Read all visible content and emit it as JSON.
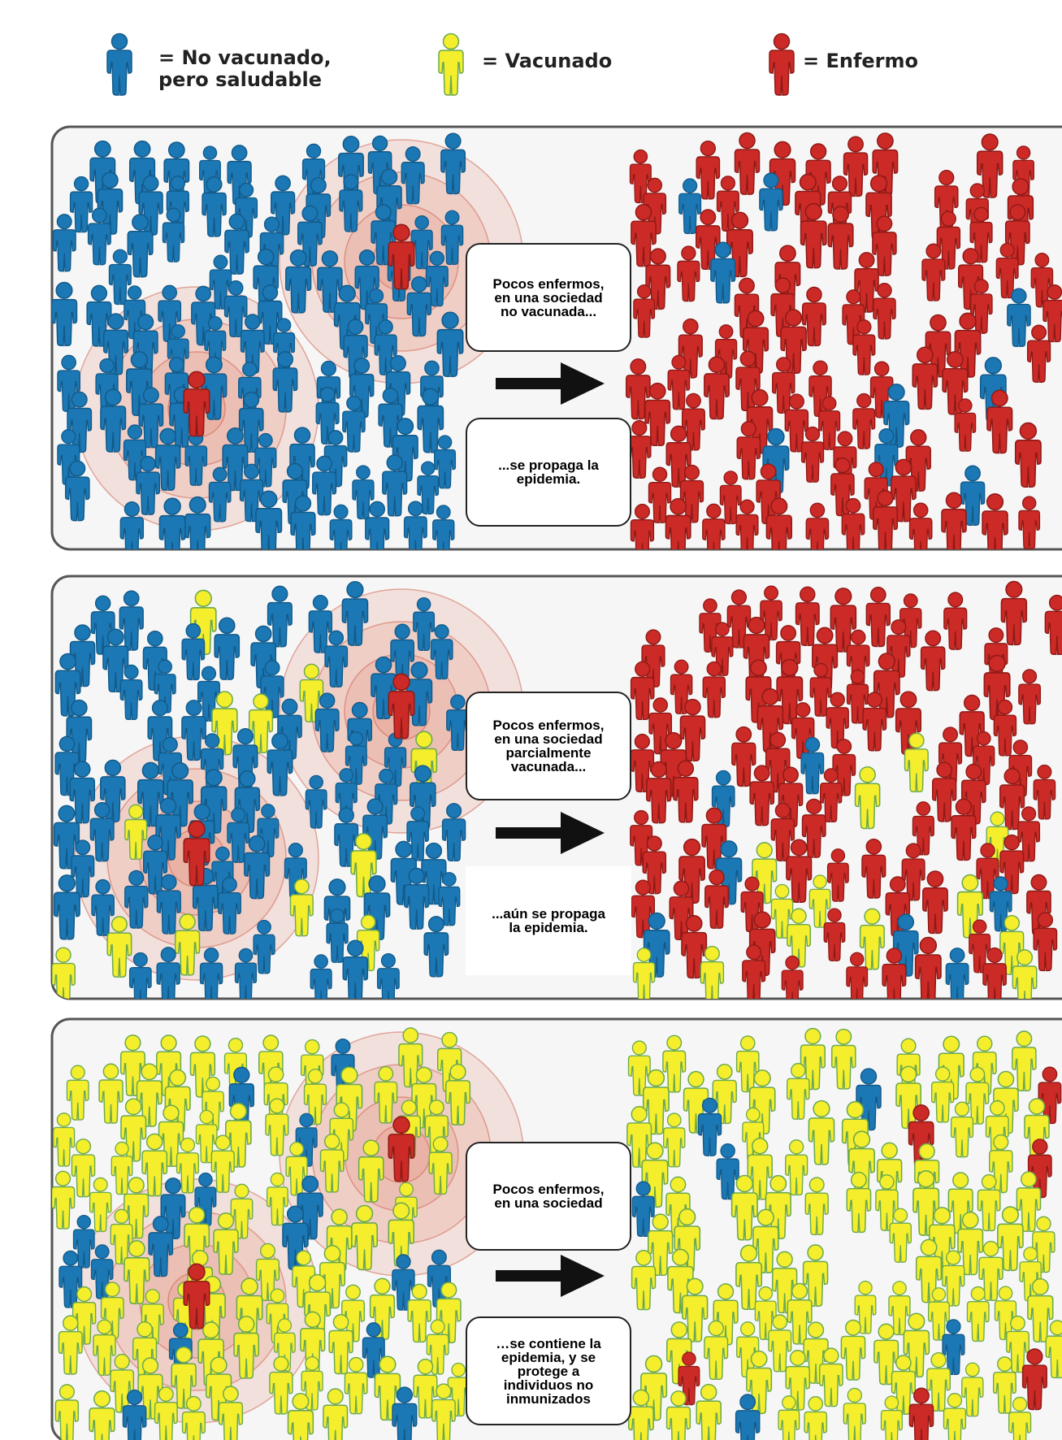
{
  "legend": [
    {
      "label": "= No vacunado, pero saludable"
    },
    {
      "label": "= Vacunado"
    },
    {
      "label": "= Enfermo"
    }
  ],
  "panels": [
    {
      "top_text": "Pocos enfermos, en una sociedad no vacunada...",
      "bottom_text": "...se propaga la epidemia."
    },
    {
      "top_text": "Pocos enfermos, en una sociedad parcialmente vacunada...",
      "bottom_text": "...aún se propaga la epidemia."
    },
    {
      "top_text": "Pocos enfermos, en una sociedad",
      "bottom_text": "…se contiene la epidemia, y se protege a individuos no inmunizados"
    }
  ]
}
